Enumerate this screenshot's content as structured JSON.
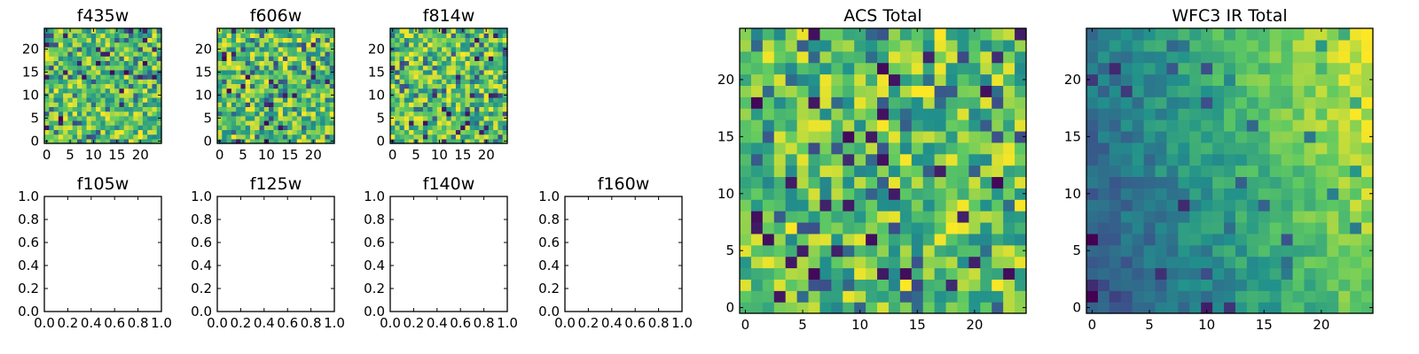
{
  "chart_data": [
    {
      "id": "f435w",
      "type": "heatmap",
      "title": "f435w",
      "grid": "25x25",
      "colormap": "viridis",
      "image": "noise",
      "xticks": [
        "0",
        "5",
        "10",
        "15",
        "20"
      ],
      "yticks": [
        "0",
        "5",
        "10",
        "15",
        "20"
      ],
      "xlim": [
        -0.5,
        24.5
      ],
      "ylim": [
        -0.5,
        24.5
      ]
    },
    {
      "id": "f606w",
      "type": "heatmap",
      "title": "f606w",
      "grid": "25x25",
      "colormap": "viridis",
      "image": "noise",
      "xticks": [
        "0",
        "5",
        "10",
        "15",
        "20"
      ],
      "yticks": [
        "0",
        "5",
        "10",
        "15",
        "20"
      ],
      "xlim": [
        -0.5,
        24.5
      ],
      "ylim": [
        -0.5,
        24.5
      ]
    },
    {
      "id": "f814w",
      "type": "heatmap",
      "title": "f814w",
      "grid": "25x25",
      "colormap": "viridis",
      "image": "noise",
      "xticks": [
        "0",
        "5",
        "10",
        "15",
        "20"
      ],
      "yticks": [
        "0",
        "5",
        "10",
        "15",
        "20"
      ],
      "xlim": [
        -0.5,
        24.5
      ],
      "ylim": [
        -0.5,
        24.5
      ]
    },
    {
      "id": "f105w",
      "type": "empty",
      "title": "f105w",
      "xticks": [
        "0.0",
        "0.2",
        "0.4",
        "0.6",
        "0.8",
        "1.0"
      ],
      "yticks": [
        "0.0",
        "0.2",
        "0.4",
        "0.6",
        "0.8",
        "1.0"
      ],
      "xlim": [
        0,
        1
      ],
      "ylim": [
        0,
        1
      ]
    },
    {
      "id": "f125w",
      "type": "empty",
      "title": "f125w",
      "xticks": [
        "0.0",
        "0.2",
        "0.4",
        "0.6",
        "0.8",
        "1.0"
      ],
      "yticks": [
        "0.0",
        "0.2",
        "0.4",
        "0.6",
        "0.8",
        "1.0"
      ],
      "xlim": [
        0,
        1
      ],
      "ylim": [
        0,
        1
      ]
    },
    {
      "id": "f140w",
      "type": "empty",
      "title": "f140w",
      "xticks": [
        "0.0",
        "0.2",
        "0.4",
        "0.6",
        "0.8",
        "1.0"
      ],
      "yticks": [
        "0.0",
        "0.2",
        "0.4",
        "0.6",
        "0.8",
        "1.0"
      ],
      "xlim": [
        0,
        1
      ],
      "ylim": [
        0,
        1
      ]
    },
    {
      "id": "f160w",
      "type": "empty",
      "title": "f160w",
      "xticks": [
        "0.0",
        "0.2",
        "0.4",
        "0.6",
        "0.8",
        "1.0"
      ],
      "yticks": [
        "0.0",
        "0.2",
        "0.4",
        "0.6",
        "0.8",
        "1.0"
      ],
      "xlim": [
        0,
        1
      ],
      "ylim": [
        0,
        1
      ]
    },
    {
      "id": "acs_total",
      "type": "heatmap",
      "title": "ACS Total",
      "grid": "25x25",
      "colormap": "viridis",
      "image": "noise",
      "xticks": [
        "0",
        "5",
        "10",
        "15",
        "20"
      ],
      "yticks": [
        "0",
        "5",
        "10",
        "15",
        "20"
      ],
      "xlim": [
        -0.5,
        24.5
      ],
      "ylim": [
        -0.5,
        24.5
      ]
    },
    {
      "id": "wfc3_ir_total",
      "type": "heatmap",
      "title": "WFC3 IR Total",
      "grid": "25x25",
      "colormap": "viridis",
      "image": "gradient",
      "xticks": [
        "0",
        "5",
        "10",
        "15",
        "20"
      ],
      "yticks": [
        "0",
        "5",
        "10",
        "15",
        "20"
      ],
      "xlim": [
        -0.5,
        24.5
      ],
      "ylim": [
        -0.5,
        24.5
      ]
    }
  ],
  "colors": {
    "viridis": [
      "#440154",
      "#3b528b",
      "#21918c",
      "#5ec962",
      "#fde725"
    ]
  }
}
